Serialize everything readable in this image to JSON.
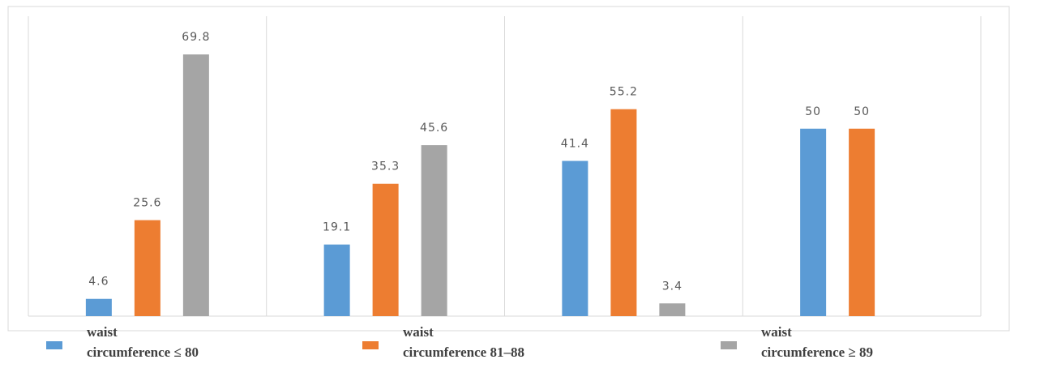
{
  "chart_data": {
    "type": "bar",
    "categories": [
      null,
      null,
      null,
      null
    ],
    "series": [
      {
        "name": "waist circumference ≤ 80",
        "color": "#5b9bd5",
        "values": [
          4.6,
          19.1,
          41.4,
          50
        ]
      },
      {
        "name": "waist circumference 81–88",
        "color": "#ed7d31",
        "values": [
          25.6,
          35.3,
          55.2,
          50
        ]
      },
      {
        "name": "waist circumference ≥ 89",
        "color": "#a5a5a5",
        "values": [
          69.8,
          45.6,
          3.4,
          null
        ]
      }
    ],
    "ylim": [
      0,
      80
    ],
    "legend": "bottom"
  }
}
